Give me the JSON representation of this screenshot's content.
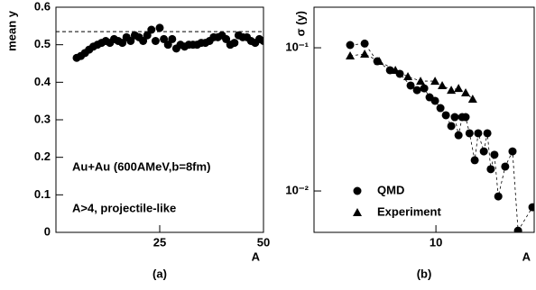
{
  "chart_data": [
    {
      "type": "scatter",
      "caption": "(a)",
      "x_label": "A",
      "y_label": "mean y",
      "annotations": [
        "Au+Au (600AMeV,b=8fm)",
        "A>4, projectile-like"
      ],
      "xlim": [
        0,
        50
      ],
      "ylim": [
        0,
        0.6
      ],
      "xticks": [
        25,
        50
      ],
      "yticks": [
        0,
        0.1,
        0.2,
        0.3,
        0.4,
        0.5,
        0.6
      ],
      "reference_line": 0.535,
      "series": [
        {
          "marker": "circle",
          "color": "#000000",
          "x": [
            5,
            6,
            7,
            8,
            9,
            10,
            11,
            12,
            13,
            14,
            15,
            16,
            17,
            18,
            19,
            20,
            21,
            22,
            23,
            24,
            25,
            26,
            27,
            28,
            29,
            30,
            31,
            32,
            33,
            34,
            35,
            36,
            37,
            38,
            39,
            40,
            41,
            42,
            43,
            44,
            45,
            46,
            47,
            48,
            49,
            50
          ],
          "values": [
            0.465,
            0.47,
            0.478,
            0.487,
            0.495,
            0.5,
            0.505,
            0.51,
            0.505,
            0.515,
            0.51,
            0.505,
            0.52,
            0.51,
            0.525,
            0.52,
            0.51,
            0.525,
            0.54,
            0.51,
            0.545,
            0.515,
            0.5,
            0.515,
            0.49,
            0.5,
            0.495,
            0.5,
            0.5,
            0.5,
            0.505,
            0.505,
            0.51,
            0.52,
            0.52,
            0.525,
            0.515,
            0.5,
            0.505,
            0.525,
            0.52,
            0.52,
            0.51,
            0.505,
            0.515,
            0.51
          ]
        }
      ]
    },
    {
      "type": "line",
      "caption": "(b)",
      "x_label": "A",
      "y_label": "σ (y)",
      "log_x": true,
      "log_y": true,
      "xlim": [
        2.24,
        33.4
      ],
      "ylim": [
        0.00514,
        0.192
      ],
      "xticks": [
        10
      ],
      "yticks": [
        {
          "value": 0.1,
          "label": "10⁻¹"
        },
        {
          "value": 0.01,
          "label": "10⁻²"
        }
      ],
      "legend": "lower left",
      "series": [
        {
          "name": "QMD",
          "marker": "circle",
          "color": "#000000",
          "x": [
            3.49,
            4.17,
            4.87,
            5.69,
            6.42,
            7.33,
            7.93,
            8.66,
            9.25,
            9.89,
            10.57,
            11.3,
            12.07,
            12.6,
            13.2,
            13.8,
            14.4,
            15.1,
            16.1,
            16.8,
            18.0,
            18.8,
            19.6,
            20.5,
            21.5,
            23.4,
            25.6,
            27.4,
            32.7
          ],
          "values": [
            0.1045,
            0.107,
            0.0805,
            0.0697,
            0.0658,
            0.0545,
            0.0506,
            0.0521,
            0.0451,
            0.0426,
            0.0379,
            0.0338,
            0.0284,
            0.0328,
            0.0245,
            0.0328,
            0.0328,
            0.0253,
            0.0164,
            0.0253,
            0.0189,
            0.0253,
            0.0142,
            0.0179,
            0.00916,
            0.0148,
            0.0189,
            0.00528,
            0.0077
          ]
        },
        {
          "name": "Experiment",
          "marker": "triangle",
          "color": "#000000",
          "x": [
            3.49,
            4.17,
            4.98,
            6.08,
            7.09,
            8.28,
            9.89,
            10.8,
            12.07,
            13.2,
            14.4,
            15.7
          ],
          "values": [
            0.0878,
            0.0904,
            0.0805,
            0.0697,
            0.0629,
            0.0585,
            0.0585,
            0.0545,
            0.0506,
            0.0521,
            0.0485,
            0.0438
          ]
        }
      ]
    }
  ]
}
